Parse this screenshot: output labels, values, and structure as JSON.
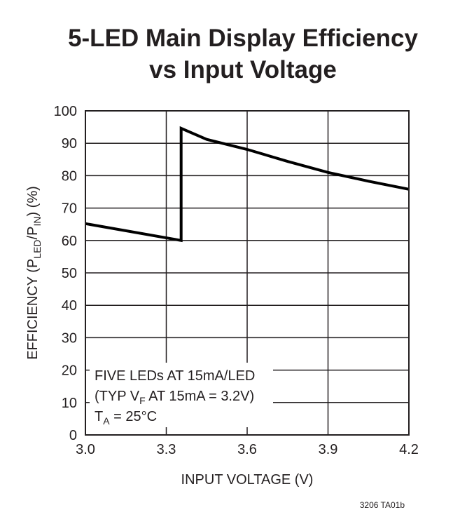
{
  "chart_data": {
    "type": "line",
    "title": [
      "5-LED Main Display Efficiency",
      "vs Input Voltage"
    ],
    "xlabel": "INPUT VOLTAGE (V)",
    "ylabel": {
      "main": "EFFICIENCY (P",
      "sub1": "LED",
      "mid": "/P",
      "sub2": "IN",
      "end": ") (%)"
    },
    "xlim": [
      3.0,
      4.2
    ],
    "ylim": [
      0,
      100
    ],
    "xticks": [
      "3.0",
      "3.3",
      "3.6",
      "3.9",
      "4.2"
    ],
    "xtick_values": [
      3.0,
      3.3,
      3.6,
      3.9,
      4.2
    ],
    "yticks": [
      "0",
      "10",
      "20",
      "30",
      "40",
      "50",
      "60",
      "70",
      "80",
      "90",
      "100"
    ],
    "ytick_values": [
      0,
      10,
      20,
      30,
      40,
      50,
      60,
      70,
      80,
      90,
      100
    ],
    "grid": true,
    "series": [
      {
        "x": [
          3.0,
          3.355,
          3.355,
          3.45,
          3.6,
          3.75,
          3.9,
          4.05,
          4.2
        ],
        "y": [
          65.2,
          60.0,
          94.6,
          91.2,
          88.1,
          84.4,
          81.0,
          78.3,
          75.8
        ],
        "color": "#000000"
      }
    ],
    "annotation": {
      "line1": "FIVE LEDs AT 15mA/LED",
      "line2_a": "(TYP V",
      "line2_sub": "F",
      "line2_b": " AT 15mA = 3.2V)",
      "line3_a": "T",
      "line3_sub": "A",
      "line3_b": " = 25°C"
    },
    "footnote": "3206 TA01b"
  }
}
